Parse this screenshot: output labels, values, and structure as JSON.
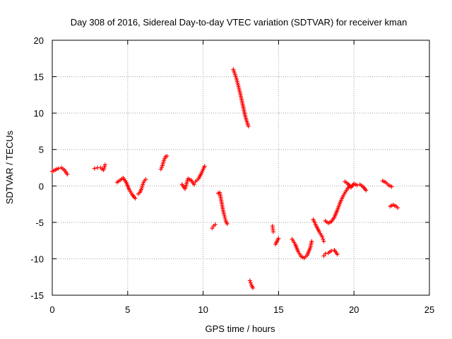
{
  "chart_data": {
    "type": "scatter",
    "title": "Day 308 of 2016, Sidereal Day-to-day VTEC variation (SDTVAR) for receiver kman",
    "xlabel": "GPS time / hours",
    "ylabel": "SDTVAR / TECUs",
    "xlim": [
      0,
      25
    ],
    "ylim": [
      -15,
      20
    ],
    "xticks": [
      "0",
      "5",
      "10",
      "15",
      "20",
      "25"
    ],
    "yticks": [
      "-15",
      "-10",
      "-5",
      "0",
      "5",
      "10",
      "15",
      "20"
    ],
    "grid": true,
    "marker": "plus",
    "marker_color": "#ff0000",
    "segments": [
      {
        "name": "seg1",
        "x": [
          0.0,
          0.2,
          0.4,
          0.6,
          0.8,
          1.0
        ],
        "y": [
          2.0,
          2.2,
          2.4,
          2.5,
          2.2,
          1.6
        ]
      },
      {
        "name": "seg2",
        "x": [
          2.8,
          3.0,
          3.2,
          3.3,
          3.4,
          3.5
        ],
        "y": [
          2.4,
          2.5,
          2.5,
          2.3,
          2.2,
          2.9
        ]
      },
      {
        "name": "seg3",
        "x": [
          4.3,
          4.5,
          4.7,
          4.9,
          5.1,
          5.3,
          5.5
        ],
        "y": [
          0.5,
          0.8,
          1.1,
          0.5,
          -0.5,
          -1.2,
          -1.7
        ]
      },
      {
        "name": "seg4",
        "x": [
          5.7,
          5.8,
          5.9,
          6.0,
          6.1,
          6.2
        ],
        "y": [
          -1.1,
          -0.9,
          -0.5,
          0.2,
          0.7,
          0.9
        ]
      },
      {
        "name": "seg5",
        "x": [
          7.2,
          7.3,
          7.4,
          7.5,
          7.6
        ],
        "y": [
          2.3,
          2.8,
          3.5,
          4.0,
          4.1
        ]
      },
      {
        "name": "seg6",
        "x": [
          8.6,
          8.8,
          9.0,
          9.2,
          9.4
        ],
        "y": [
          0.2,
          -0.4,
          1.0,
          0.8,
          0.2
        ]
      },
      {
        "name": "seg7",
        "x": [
          9.5,
          9.7,
          9.9,
          10.0,
          10.1
        ],
        "y": [
          0.6,
          1.0,
          1.8,
          2.3,
          2.7
        ]
      },
      {
        "name": "seg8",
        "x": [
          10.6,
          10.7,
          10.8
        ],
        "y": [
          -5.8,
          -5.5,
          -5.3
        ]
      },
      {
        "name": "seg9",
        "x": [
          11.0,
          11.1,
          11.2,
          11.3,
          11.4,
          11.5,
          11.6
        ],
        "y": [
          -1.0,
          -0.9,
          -2.0,
          -3.1,
          -4.0,
          -4.8,
          -5.2
        ]
      },
      {
        "name": "seg10",
        "x": [
          12.0,
          12.2,
          12.4,
          12.6,
          12.8,
          13.0
        ],
        "y": [
          16.0,
          14.8,
          13.2,
          11.4,
          9.5,
          8.2
        ]
      },
      {
        "name": "seg11",
        "x": [
          13.1,
          13.2,
          13.3
        ],
        "y": [
          -13.0,
          -13.6,
          -14.0
        ]
      },
      {
        "name": "seg12",
        "x": [
          14.6,
          14.65
        ],
        "y": [
          -5.5,
          -6.3
        ]
      },
      {
        "name": "seg13",
        "x": [
          14.8,
          14.9,
          15.0
        ],
        "y": [
          -8.0,
          -7.6,
          -7.2
        ]
      },
      {
        "name": "seg14",
        "x": [
          15.9,
          16.1,
          16.3,
          16.5,
          16.7,
          16.9,
          17.1,
          17.2
        ],
        "y": [
          -7.3,
          -8.0,
          -9.0,
          -9.7,
          -9.9,
          -9.5,
          -8.5,
          -7.6
        ]
      },
      {
        "name": "seg15",
        "x": [
          17.3,
          17.5,
          17.7,
          17.9,
          18.0
        ],
        "y": [
          -4.6,
          -5.5,
          -6.3,
          -7.0,
          -7.6
        ]
      },
      {
        "name": "seg16",
        "x": [
          18.0,
          18.1
        ],
        "y": [
          -9.6,
          -9.3
        ]
      },
      {
        "name": "seg17",
        "x": [
          18.3,
          18.5,
          18.7,
          18.9
        ],
        "y": [
          -9.2,
          -8.9,
          -8.8,
          -9.4
        ]
      },
      {
        "name": "seg18",
        "x": [
          18.1,
          18.3,
          18.5,
          18.7,
          18.9,
          19.1,
          19.3,
          19.5,
          19.7
        ],
        "y": [
          -4.8,
          -5.1,
          -4.9,
          -4.3,
          -3.3,
          -2.2,
          -1.3,
          -0.6,
          0.0
        ]
      },
      {
        "name": "seg19",
        "x": [
          19.4,
          19.6,
          19.8,
          20.0,
          20.2,
          20.4,
          20.6,
          20.8
        ],
        "y": [
          0.6,
          0.3,
          -0.2,
          0.3,
          0.1,
          0.2,
          -0.1,
          -0.6
        ]
      },
      {
        "name": "seg20",
        "x": [
          21.9,
          22.1,
          22.3,
          22.5
        ],
        "y": [
          0.7,
          0.5,
          0.1,
          -0.1
        ]
      },
      {
        "name": "seg21",
        "x": [
          22.4,
          22.6,
          22.8,
          22.9
        ],
        "y": [
          -2.8,
          -2.6,
          -2.8,
          -3.0
        ]
      }
    ]
  }
}
